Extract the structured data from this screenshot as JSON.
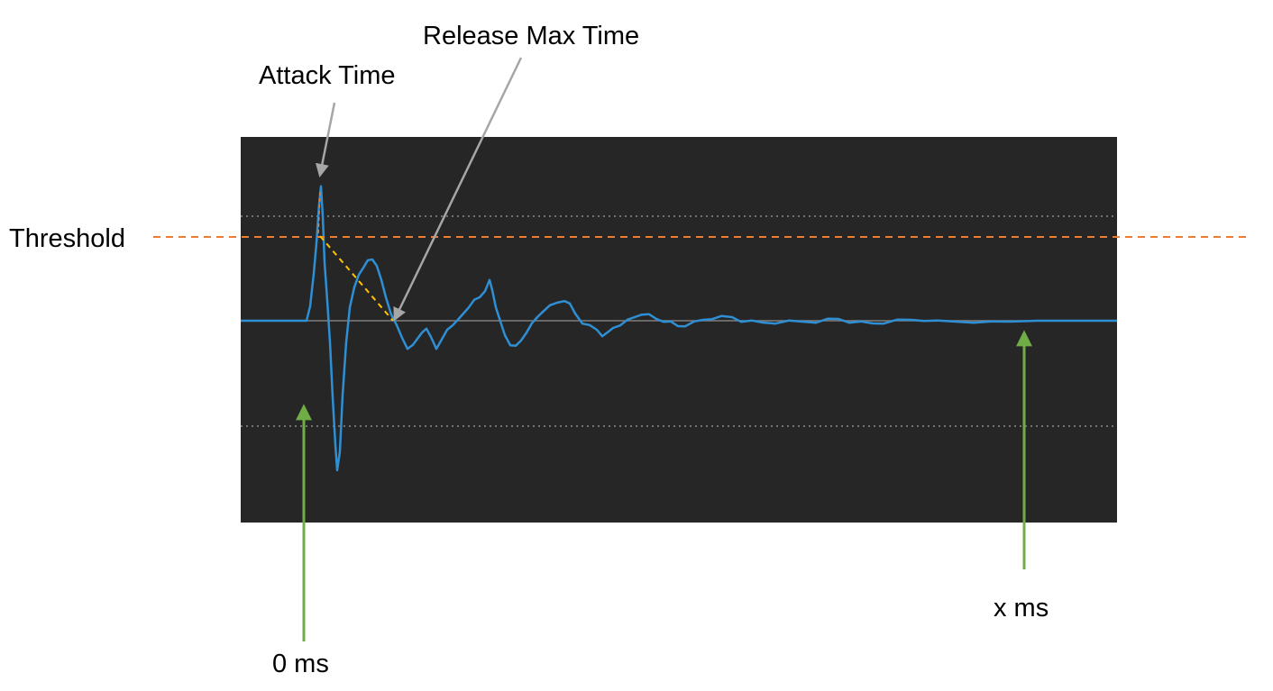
{
  "labels": {
    "threshold": "Threshold",
    "attack_time": "Attack Time",
    "release_max_time": "Release Max Time",
    "start_time": "0 ms",
    "end_time": "x ms"
  },
  "colors": {
    "background": "#ffffff",
    "panel": "#262626",
    "waveform": "#2e8fd4",
    "threshold_line": "#ed7d31",
    "release_slope": "#ffc000",
    "time_arrows": "#70ad47",
    "callout_arrows": "#a6a6a6",
    "grid_dotted": "#8c8c8c",
    "baseline": "#7f7f7f"
  },
  "waveform": {
    "description_only": false,
    "shape": "decaying-oscillation"
  }
}
